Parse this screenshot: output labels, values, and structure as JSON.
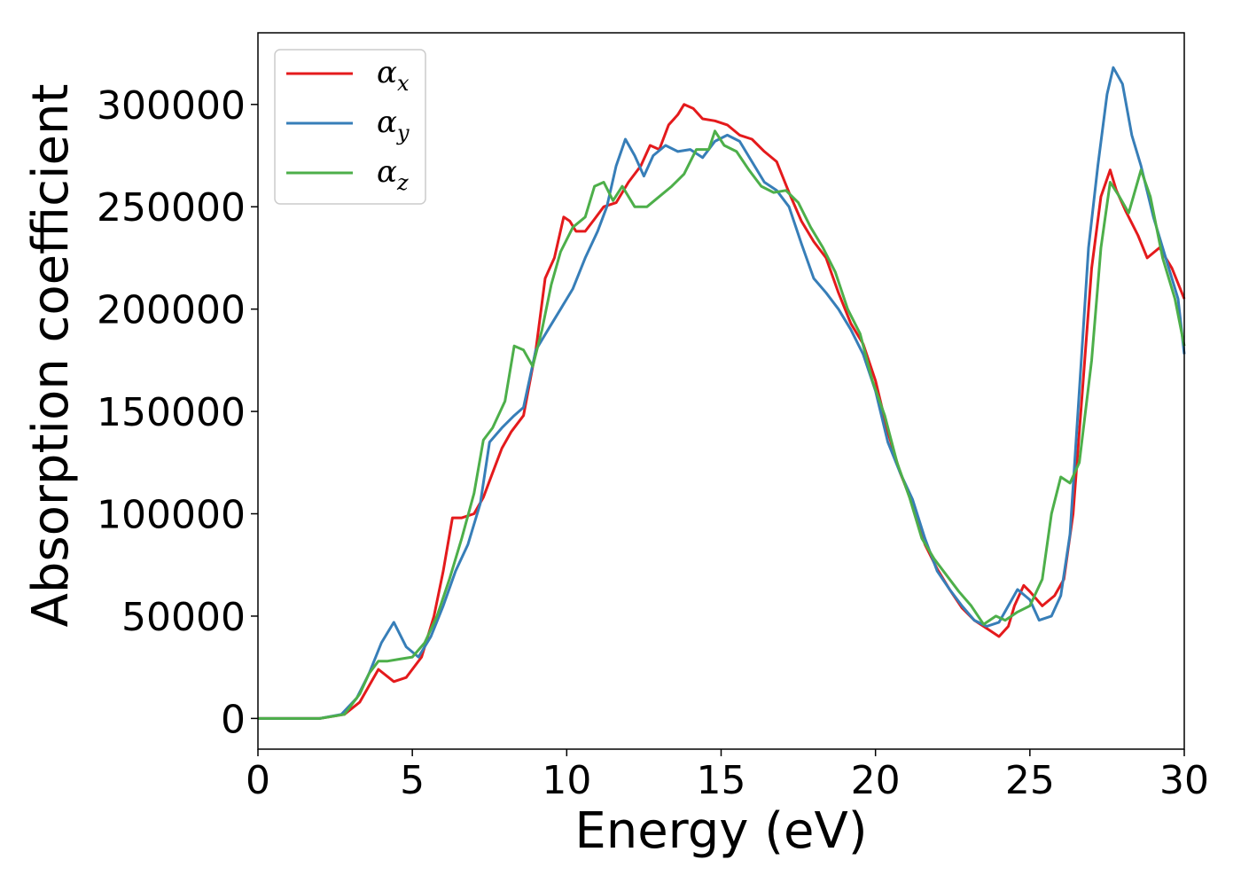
{
  "chart_data": {
    "type": "line",
    "title": "",
    "xlabel": "Energy (eV)",
    "ylabel": "Absorption coefficient",
    "xlim": [
      0,
      30
    ],
    "ylim": [
      -15000,
      335000
    ],
    "xticks": [
      0,
      5,
      10,
      15,
      20,
      25,
      30
    ],
    "xtick_labels": [
      "0",
      "5",
      "10",
      "15",
      "20",
      "25",
      "30"
    ],
    "yticks": [
      0,
      50000,
      100000,
      150000,
      200000,
      250000,
      300000
    ],
    "ytick_labels": [
      "0",
      "50000",
      "100000",
      "150000",
      "200000",
      "250000",
      "300000"
    ],
    "grid": false,
    "legend": {
      "position": "top-left"
    },
    "series": [
      {
        "name": "αx",
        "legend_main": "α",
        "legend_sub": "x",
        "color": "#e41a1c",
        "points": [
          [
            0,
            0
          ],
          [
            2,
            0
          ],
          [
            2.8,
            2000
          ],
          [
            3.3,
            8000
          ],
          [
            3.9,
            24000
          ],
          [
            4.4,
            18000
          ],
          [
            4.8,
            20000
          ],
          [
            5.3,
            30000
          ],
          [
            5.7,
            50000
          ],
          [
            6.0,
            72000
          ],
          [
            6.3,
            98000
          ],
          [
            6.6,
            98000
          ],
          [
            7.0,
            100000
          ],
          [
            7.3,
            108000
          ],
          [
            7.6,
            120000
          ],
          [
            7.9,
            132000
          ],
          [
            8.2,
            140000
          ],
          [
            8.6,
            148000
          ],
          [
            9.0,
            180000
          ],
          [
            9.3,
            215000
          ],
          [
            9.6,
            225000
          ],
          [
            9.9,
            245000
          ],
          [
            10.1,
            243000
          ],
          [
            10.3,
            238000
          ],
          [
            10.6,
            238000
          ],
          [
            10.9,
            244000
          ],
          [
            11.2,
            250000
          ],
          [
            11.6,
            252000
          ],
          [
            12.0,
            262000
          ],
          [
            12.4,
            270000
          ],
          [
            12.7,
            280000
          ],
          [
            13.0,
            278000
          ],
          [
            13.3,
            290000
          ],
          [
            13.6,
            295000
          ],
          [
            13.8,
            300000
          ],
          [
            14.1,
            298000
          ],
          [
            14.4,
            293000
          ],
          [
            14.8,
            292000
          ],
          [
            15.2,
            290000
          ],
          [
            15.6,
            285000
          ],
          [
            16.0,
            283000
          ],
          [
            16.4,
            277000
          ],
          [
            16.8,
            272000
          ],
          [
            17.2,
            257000
          ],
          [
            17.6,
            243000
          ],
          [
            18.0,
            233000
          ],
          [
            18.4,
            225000
          ],
          [
            18.8,
            208000
          ],
          [
            19.2,
            193000
          ],
          [
            19.6,
            183000
          ],
          [
            20.0,
            165000
          ],
          [
            20.4,
            140000
          ],
          [
            20.8,
            120000
          ],
          [
            21.2,
            105000
          ],
          [
            21.6,
            85000
          ],
          [
            22.0,
            73000
          ],
          [
            22.4,
            63000
          ],
          [
            22.8,
            54000
          ],
          [
            23.2,
            48000
          ],
          [
            23.6,
            44000
          ],
          [
            24.0,
            40000
          ],
          [
            24.3,
            45000
          ],
          [
            24.5,
            55000
          ],
          [
            24.8,
            65000
          ],
          [
            25.0,
            62000
          ],
          [
            25.4,
            55000
          ],
          [
            25.8,
            60000
          ],
          [
            26.1,
            68000
          ],
          [
            26.4,
            100000
          ],
          [
            26.7,
            160000
          ],
          [
            27.0,
            220000
          ],
          [
            27.3,
            255000
          ],
          [
            27.6,
            268000
          ],
          [
            27.8,
            258000
          ],
          [
            28.1,
            248000
          ],
          [
            28.5,
            236000
          ],
          [
            28.8,
            225000
          ],
          [
            29.2,
            230000
          ],
          [
            29.6,
            220000
          ],
          [
            30.0,
            205000
          ]
        ]
      },
      {
        "name": "αy",
        "legend_main": "α",
        "legend_sub": "y",
        "color": "#377eb8",
        "points": [
          [
            0,
            0
          ],
          [
            2,
            0
          ],
          [
            2.7,
            2000
          ],
          [
            3.2,
            10000
          ],
          [
            3.6,
            22000
          ],
          [
            4.0,
            37000
          ],
          [
            4.4,
            47000
          ],
          [
            4.8,
            35000
          ],
          [
            5.2,
            30000
          ],
          [
            5.6,
            40000
          ],
          [
            6.0,
            55000
          ],
          [
            6.4,
            72000
          ],
          [
            6.8,
            85000
          ],
          [
            7.2,
            105000
          ],
          [
            7.5,
            135000
          ],
          [
            7.9,
            142000
          ],
          [
            8.3,
            148000
          ],
          [
            8.6,
            152000
          ],
          [
            9.0,
            180000
          ],
          [
            9.4,
            190000
          ],
          [
            9.8,
            200000
          ],
          [
            10.2,
            210000
          ],
          [
            10.6,
            225000
          ],
          [
            11.0,
            238000
          ],
          [
            11.3,
            250000
          ],
          [
            11.6,
            270000
          ],
          [
            11.9,
            283000
          ],
          [
            12.2,
            275000
          ],
          [
            12.5,
            265000
          ],
          [
            12.8,
            275000
          ],
          [
            13.2,
            280000
          ],
          [
            13.6,
            277000
          ],
          [
            14.0,
            278000
          ],
          [
            14.4,
            274000
          ],
          [
            14.8,
            282000
          ],
          [
            15.2,
            285000
          ],
          [
            15.6,
            282000
          ],
          [
            16.0,
            272000
          ],
          [
            16.4,
            262000
          ],
          [
            16.8,
            258000
          ],
          [
            17.2,
            250000
          ],
          [
            17.6,
            232000
          ],
          [
            18.0,
            215000
          ],
          [
            18.4,
            208000
          ],
          [
            18.8,
            200000
          ],
          [
            19.2,
            190000
          ],
          [
            19.6,
            178000
          ],
          [
            20.0,
            160000
          ],
          [
            20.4,
            135000
          ],
          [
            20.8,
            120000
          ],
          [
            21.2,
            107000
          ],
          [
            21.6,
            88000
          ],
          [
            22.0,
            72000
          ],
          [
            22.4,
            63000
          ],
          [
            22.8,
            55000
          ],
          [
            23.2,
            48000
          ],
          [
            23.6,
            45000
          ],
          [
            24.0,
            47000
          ],
          [
            24.3,
            55000
          ],
          [
            24.6,
            63000
          ],
          [
            25.0,
            58000
          ],
          [
            25.3,
            48000
          ],
          [
            25.7,
            50000
          ],
          [
            26.0,
            60000
          ],
          [
            26.3,
            90000
          ],
          [
            26.6,
            160000
          ],
          [
            26.9,
            230000
          ],
          [
            27.2,
            270000
          ],
          [
            27.5,
            305000
          ],
          [
            27.7,
            318000
          ],
          [
            28.0,
            310000
          ],
          [
            28.3,
            285000
          ],
          [
            28.6,
            270000
          ],
          [
            29.0,
            245000
          ],
          [
            29.4,
            225000
          ],
          [
            29.8,
            205000
          ],
          [
            30.0,
            178000
          ]
        ]
      },
      {
        "name": "αz",
        "legend_main": "α",
        "legend_sub": "z",
        "color": "#4daf4a",
        "points": [
          [
            0,
            0
          ],
          [
            2,
            0
          ],
          [
            2.8,
            2000
          ],
          [
            3.3,
            12000
          ],
          [
            3.6,
            22000
          ],
          [
            3.9,
            28000
          ],
          [
            4.2,
            28000
          ],
          [
            4.6,
            29000
          ],
          [
            5.0,
            30000
          ],
          [
            5.4,
            37000
          ],
          [
            5.8,
            50000
          ],
          [
            6.2,
            68000
          ],
          [
            6.6,
            88000
          ],
          [
            7.0,
            110000
          ],
          [
            7.3,
            136000
          ],
          [
            7.6,
            142000
          ],
          [
            8.0,
            155000
          ],
          [
            8.3,
            182000
          ],
          [
            8.6,
            180000
          ],
          [
            8.9,
            172000
          ],
          [
            9.2,
            190000
          ],
          [
            9.5,
            212000
          ],
          [
            9.8,
            228000
          ],
          [
            10.2,
            240000
          ],
          [
            10.6,
            245000
          ],
          [
            10.9,
            260000
          ],
          [
            11.2,
            262000
          ],
          [
            11.5,
            253000
          ],
          [
            11.8,
            260000
          ],
          [
            12.2,
            250000
          ],
          [
            12.6,
            250000
          ],
          [
            13.0,
            255000
          ],
          [
            13.4,
            260000
          ],
          [
            13.8,
            266000
          ],
          [
            14.2,
            278000
          ],
          [
            14.6,
            278000
          ],
          [
            14.8,
            287000
          ],
          [
            15.1,
            280000
          ],
          [
            15.5,
            277000
          ],
          [
            15.9,
            268000
          ],
          [
            16.3,
            260000
          ],
          [
            16.7,
            257000
          ],
          [
            17.1,
            258000
          ],
          [
            17.5,
            252000
          ],
          [
            17.9,
            240000
          ],
          [
            18.3,
            230000
          ],
          [
            18.7,
            218000
          ],
          [
            19.1,
            200000
          ],
          [
            19.5,
            188000
          ],
          [
            19.9,
            165000
          ],
          [
            20.3,
            148000
          ],
          [
            20.7,
            125000
          ],
          [
            21.1,
            108000
          ],
          [
            21.5,
            88000
          ],
          [
            21.9,
            78000
          ],
          [
            22.3,
            70000
          ],
          [
            22.7,
            62000
          ],
          [
            23.1,
            55000
          ],
          [
            23.5,
            46000
          ],
          [
            23.9,
            50000
          ],
          [
            24.2,
            48000
          ],
          [
            24.6,
            52000
          ],
          [
            25.0,
            55000
          ],
          [
            25.4,
            68000
          ],
          [
            25.7,
            100000
          ],
          [
            26.0,
            118000
          ],
          [
            26.3,
            115000
          ],
          [
            26.6,
            125000
          ],
          [
            27.0,
            175000
          ],
          [
            27.3,
            230000
          ],
          [
            27.6,
            262000
          ],
          [
            27.9,
            255000
          ],
          [
            28.2,
            247000
          ],
          [
            28.6,
            268000
          ],
          [
            28.9,
            255000
          ],
          [
            29.3,
            225000
          ],
          [
            29.7,
            205000
          ],
          [
            30.0,
            182000
          ]
        ]
      }
    ]
  }
}
